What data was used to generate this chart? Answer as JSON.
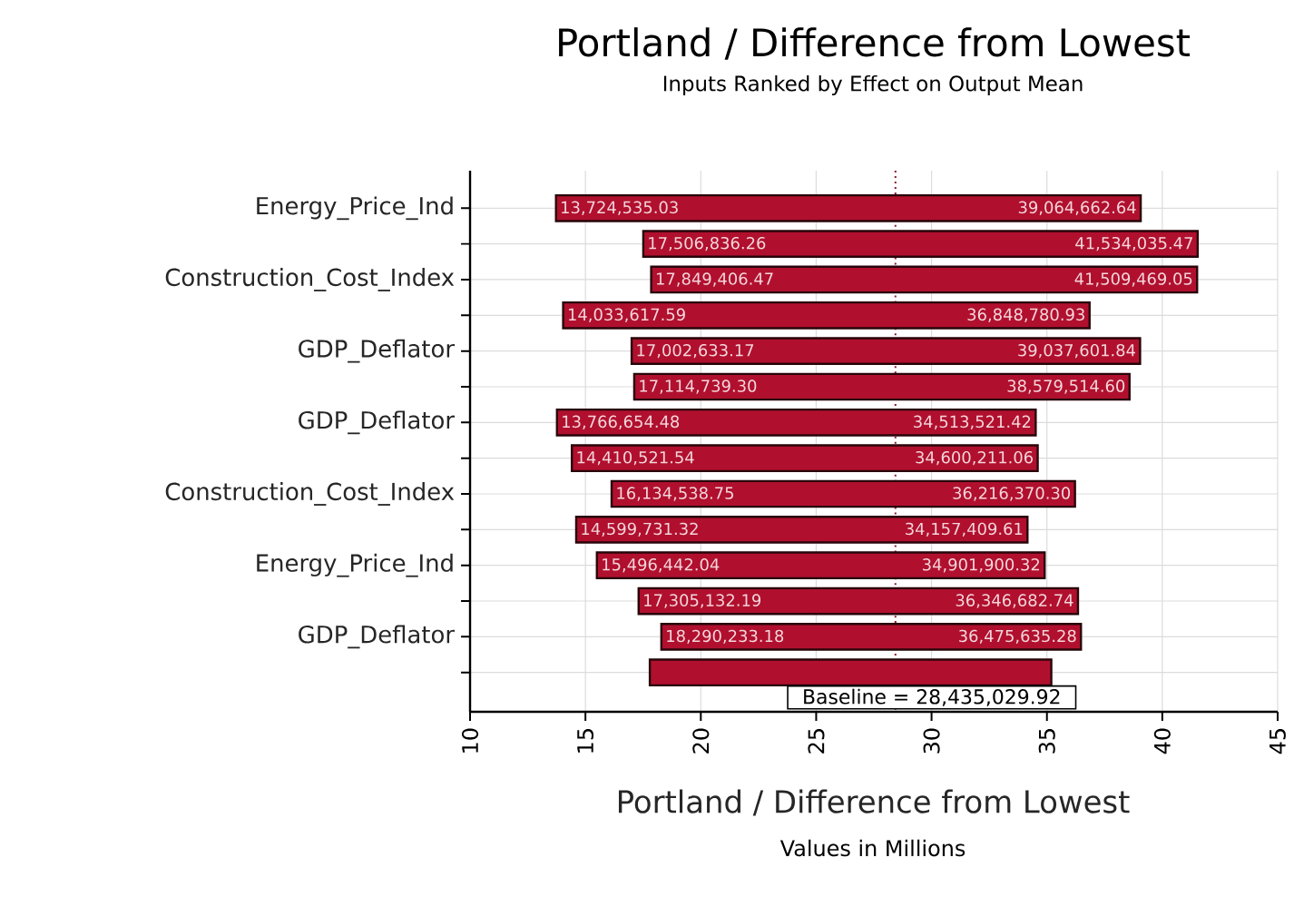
{
  "chart_data": {
    "type": "bar",
    "orientation": "horizontal",
    "title": "Portland / Difference from Lowest",
    "subtitle": "Inputs Ranked by Effect on Output  Mean",
    "xlabel": "Portland / Difference from Lowest",
    "categories": [
      "Energy_Price_Ind",
      null,
      "Construction_Cost_Index",
      null,
      "GDP_Deflator",
      null,
      "GDP_Deflator",
      null,
      "Construction_Cost_Index",
      null,
      "Energy_Price_Ind",
      null,
      "GDP_Deflator",
      null
    ],
    "base": [
      13.72453503,
      17.50685626,
      17.84940647,
      14.03361759,
      17.00263317,
      17.1147393,
      13.76665448,
      14.41052154,
      16.13453875,
      14.59973132,
      15.49644204,
      17.30513219,
      18.29023318,
      17.79
    ],
    "values": [
      25.34012761,
      24.02717921,
      23.66006258,
      22.81516334,
      22.03496867,
      21.4647753,
      20.74686694,
      20.18968952,
      20.08183155,
      19.55767829,
      19.40545828,
      19.04155055,
      18.1854021,
      17.4
    ],
    "color": "#b0102e",
    "xlim": [
      10,
      45
    ],
    "xticks": [
      10,
      15,
      20,
      25,
      30,
      35,
      40,
      45
    ],
    "grid": true,
    "ref_lines": [
      {
        "axis": "x",
        "value": 28.43502992,
        "label": "Baseline = 28,435,029.92",
        "color": "#8a1a2a",
        "line_style": "dotted"
      }
    ],
    "annotations": [
      {
        "text": "13,724,535.03",
        "x": 13.72453503
      },
      {
        "text": "39,064,662.64",
        "x": 39.06466264
      },
      {
        "text": "17,506,836.26",
        "x": 17.50685626
      },
      {
        "text": "41,534,035.47",
        "x": 41.53403547
      },
      {
        "text": "17,849,406.47",
        "x": 17.84940647
      },
      {
        "text": "41,509,469.05",
        "x": 41.50946905
      },
      {
        "text": "14,033,617.59",
        "x": 14.03361759
      },
      {
        "text": "36,848,780.93",
        "x": 36.84878093
      },
      {
        "text": "17,002,633.17",
        "x": 17.00263317
      },
      {
        "text": "39,037,601.84",
        "x": 39.03760184
      },
      {
        "text": "17,114,739.30",
        "x": 17.1147393
      },
      {
        "text": "38,579,514.60",
        "x": 38.5795146
      },
      {
        "text": "13,766,654.48",
        "x": 13.76665448
      },
      {
        "text": "34,513,521.42",
        "x": 34.51352142
      },
      {
        "text": "14,410,521.54",
        "x": 14.41052154
      },
      {
        "text": "34,600,211.06",
        "x": 34.60021106
      },
      {
        "text": "16,134,538.75",
        "x": 16.13453875
      },
      {
        "text": "36,216,370.30",
        "x": 36.2163703
      },
      {
        "text": "14,599,731.32",
        "x": 14.59973132
      },
      {
        "text": "34,157,409.61",
        "x": 34.15740961
      },
      {
        "text": "15,496,442.04",
        "x": 15.49644204
      },
      {
        "text": "34,901,900.32",
        "x": 34.90190032
      },
      {
        "text": "17,305,132.19",
        "x": 17.30513219
      },
      {
        "text": "36,346,682.74",
        "x": 36.34668274
      },
      {
        "text": "18,290,233.18",
        "x": 18.29023318
      },
      {
        "text": "36,475,635.28",
        "x": 36.47563528
      },
      "Values in Millions"
    ]
  }
}
